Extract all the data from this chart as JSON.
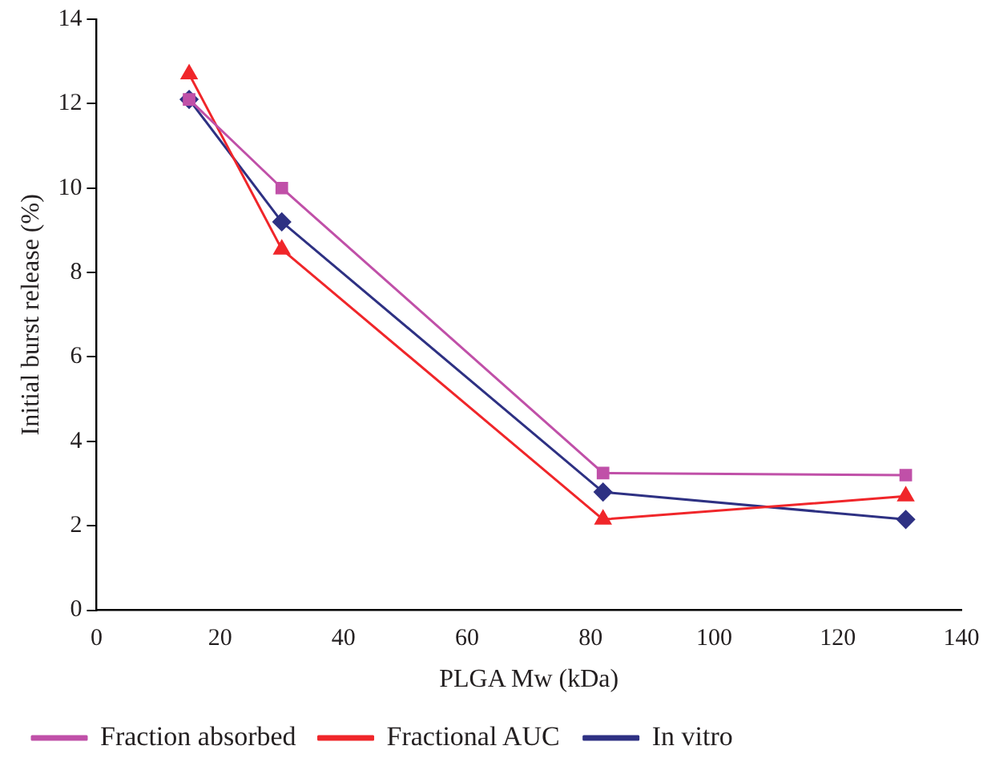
{
  "chart_data": {
    "type": "line",
    "xlabel": "PLGA Mw (kDa)",
    "ylabel": "Initial burst release (%)",
    "xlim": [
      0,
      140
    ],
    "xticks": [
      0,
      20,
      40,
      60,
      80,
      100,
      120,
      140
    ],
    "ylim": [
      0,
      14
    ],
    "yticks": [
      0,
      2,
      4,
      6,
      8,
      10,
      12,
      14
    ],
    "grid": false,
    "legend": "bottom",
    "line_style": "solid",
    "series": [
      {
        "name": "In vitro",
        "color": "#2e3183",
        "marker": "diamond",
        "x": [
          15,
          30,
          82,
          131
        ],
        "values": [
          12.1,
          9.2,
          2.8,
          2.15
        ]
      },
      {
        "name": "Fractional AUC",
        "color": "#f0262a",
        "marker": "triangle",
        "x": [
          15,
          30,
          82,
          131
        ],
        "values": [
          12.7,
          8.55,
          2.15,
          2.7
        ]
      },
      {
        "name": "Fraction absorbed",
        "color": "#c050a8",
        "marker": "square",
        "x": [
          15,
          30,
          82,
          131
        ],
        "values": [
          12.1,
          10.0,
          3.25,
          3.2
        ]
      }
    ]
  }
}
